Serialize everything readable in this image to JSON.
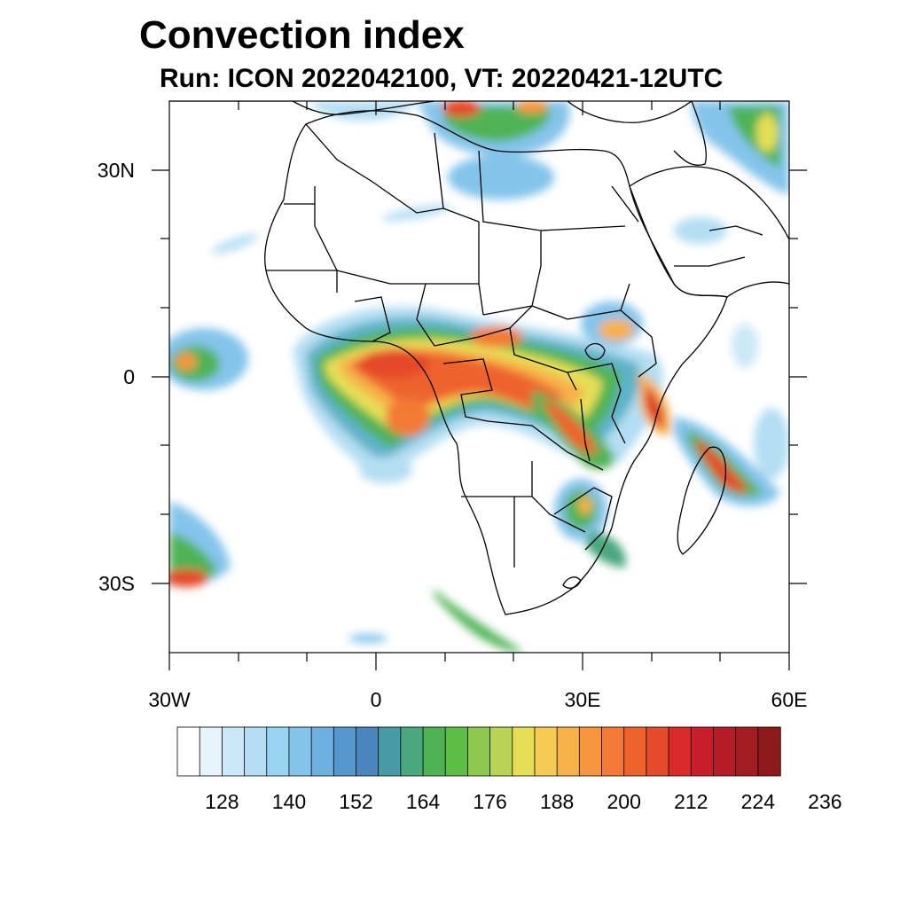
{
  "title": "Convection index",
  "subtitle": "Run: ICON 2022042100,  VT: 20220421-12UTC",
  "map": {
    "lon_labels": [
      {
        "value": -30,
        "label": "30W"
      },
      {
        "value": 0,
        "label": "0"
      },
      {
        "value": 30,
        "label": "30E"
      },
      {
        "value": 60,
        "label": "60E"
      }
    ],
    "lat_labels": [
      {
        "value": 30,
        "label": "30N"
      },
      {
        "value": 0,
        "label": "0"
      },
      {
        "value": -30,
        "label": "30S"
      }
    ],
    "lon_range": [
      -30,
      60
    ],
    "lat_range": [
      -40,
      40
    ]
  },
  "colorbar": {
    "colors": [
      "#ffffff",
      "#e6f4fc",
      "#cbe8f7",
      "#b4def3",
      "#99d5f2",
      "#84c4eb",
      "#6cb1e0",
      "#5598d0",
      "#4a86bd",
      "#479ba6",
      "#4aa77e",
      "#4fb355",
      "#5cbf45",
      "#8ec84e",
      "#b9d454",
      "#e6df56",
      "#f6cb54",
      "#f7b149",
      "#f6963f",
      "#f27a36",
      "#ee622e",
      "#e54a2a",
      "#d92b2a",
      "#c81e2b",
      "#b61b28",
      "#a21d22",
      "#8c1a1a"
    ],
    "tick_labels": [
      "128",
      "140",
      "152",
      "164",
      "176",
      "188",
      "200",
      "212",
      "224",
      "236"
    ]
  }
}
